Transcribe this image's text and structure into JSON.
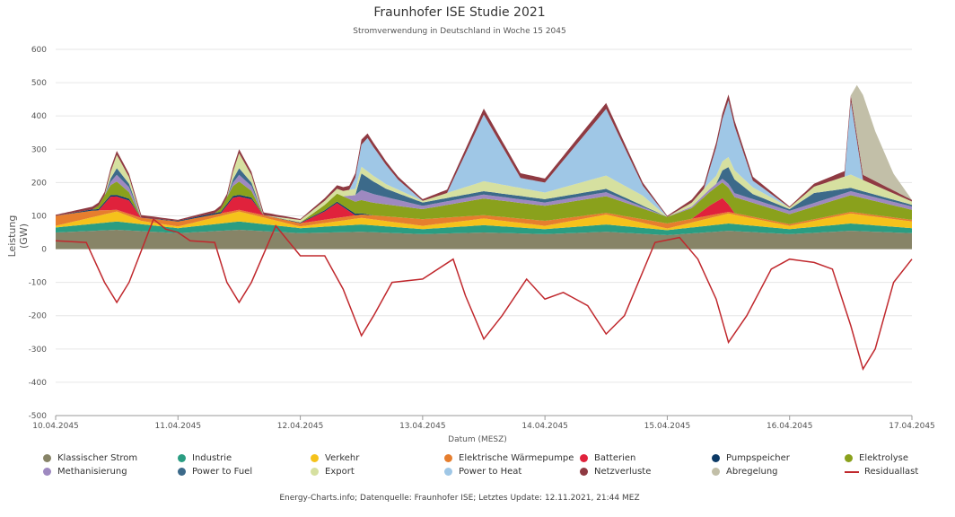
{
  "chart_data": {
    "type": "area",
    "title": "Fraunhofer ISE Studie 2021",
    "subtitle": "Stromverwendung in Deutschland in Woche 15 2045",
    "xlabel": "Datum (MESZ)",
    "ylabel": "Leistung (GW)",
    "ylim": [
      -500,
      600
    ],
    "yticks": [
      -500,
      -400,
      -300,
      -200,
      -100,
      0,
      100,
      200,
      300,
      400,
      500,
      600
    ],
    "xlim": [
      0,
      7
    ],
    "xticks": [
      {
        "x": 0,
        "label": "10.04.2045"
      },
      {
        "x": 1,
        "label": "11.04.2045"
      },
      {
        "x": 2,
        "label": "12.04.2045"
      },
      {
        "x": 3,
        "label": "13.04.2045"
      },
      {
        "x": 4,
        "label": "14.04.2045"
      },
      {
        "x": 5,
        "label": "15.04.2045"
      },
      {
        "x": 6,
        "label": "16.04.2045"
      },
      {
        "x": 7,
        "label": "17.04.2045"
      }
    ],
    "grid": true,
    "legend_position": "bottom",
    "stacked_series": [
      {
        "name": "Klassischer Strom",
        "color": "#878467",
        "points": [
          [
            0,
            50
          ],
          [
            0.5,
            58
          ],
          [
            1,
            48
          ],
          [
            1.5,
            58
          ],
          [
            2,
            48
          ],
          [
            2.5,
            52
          ],
          [
            3,
            45
          ],
          [
            3.5,
            50
          ],
          [
            4,
            45
          ],
          [
            4.5,
            52
          ],
          [
            5,
            42
          ],
          [
            5.5,
            55
          ],
          [
            6,
            45
          ],
          [
            6.5,
            55
          ],
          [
            7,
            48
          ]
        ]
      },
      {
        "name": "Industrie",
        "color": "#2a9d82",
        "points": [
          [
            0,
            15
          ],
          [
            0.5,
            25
          ],
          [
            1,
            15
          ],
          [
            1.5,
            25
          ],
          [
            2,
            15
          ],
          [
            2.5,
            22
          ],
          [
            3,
            15
          ],
          [
            3.5,
            22
          ],
          [
            4,
            15
          ],
          [
            4.5,
            22
          ],
          [
            5,
            15
          ],
          [
            5.5,
            22
          ],
          [
            6,
            15
          ],
          [
            6.5,
            22
          ],
          [
            7,
            15
          ]
        ]
      },
      {
        "name": "Verkehr",
        "color": "#f5c21b",
        "points": [
          [
            0,
            5
          ],
          [
            0.5,
            30
          ],
          [
            0.7,
            10
          ],
          [
            1,
            5
          ],
          [
            1.5,
            30
          ],
          [
            2,
            5
          ],
          [
            2.5,
            20
          ],
          [
            3,
            10
          ],
          [
            3.5,
            20
          ],
          [
            4,
            10
          ],
          [
            4.5,
            30
          ],
          [
            5,
            5
          ],
          [
            5.5,
            30
          ],
          [
            6,
            10
          ],
          [
            6.5,
            30
          ],
          [
            7,
            20
          ]
        ]
      },
      {
        "name": "Elektrische Wärmepumpe",
        "color": "#e67e2e",
        "points": [
          [
            0,
            30
          ],
          [
            0.3,
            20
          ],
          [
            0.5,
            5
          ],
          [
            1,
            15
          ],
          [
            1.5,
            5
          ],
          [
            2,
            10
          ],
          [
            2.5,
            10
          ],
          [
            3,
            20
          ],
          [
            3.5,
            10
          ],
          [
            4,
            15
          ],
          [
            4.5,
            5
          ],
          [
            5,
            15
          ],
          [
            5.5,
            5
          ],
          [
            6,
            5
          ],
          [
            6.5,
            5
          ],
          [
            7,
            5
          ]
        ]
      },
      {
        "name": "Batterien",
        "color": "#e0223c",
        "points": [
          [
            0,
            0
          ],
          [
            0.35,
            0
          ],
          [
            0.45,
            40
          ],
          [
            0.6,
            40
          ],
          [
            0.7,
            0
          ],
          [
            1.35,
            0
          ],
          [
            1.45,
            40
          ],
          [
            1.6,
            40
          ],
          [
            1.7,
            0
          ],
          [
            2,
            0
          ],
          [
            2.2,
            25
          ],
          [
            2.3,
            45
          ],
          [
            2.45,
            0
          ],
          [
            5.2,
            0
          ],
          [
            5.35,
            30
          ],
          [
            5.45,
            45
          ],
          [
            5.55,
            0
          ],
          [
            7,
            0
          ]
        ]
      },
      {
        "name": "Pumpspeicher",
        "color": "#0c3a66",
        "points": [
          [
            0,
            0
          ],
          [
            0.45,
            5
          ],
          [
            0.6,
            5
          ],
          [
            0.7,
            0
          ],
          [
            1.45,
            5
          ],
          [
            1.6,
            5
          ],
          [
            1.7,
            0
          ],
          [
            2.45,
            5
          ],
          [
            2.6,
            0
          ],
          [
            7,
            0
          ]
        ]
      },
      {
        "name": "Elektrolyse",
        "color": "#8aa11c",
        "points": [
          [
            0,
            0
          ],
          [
            0.3,
            0
          ],
          [
            0.5,
            40
          ],
          [
            0.7,
            0
          ],
          [
            1.3,
            0
          ],
          [
            1.5,
            40
          ],
          [
            1.7,
            0
          ],
          [
            2,
            0
          ],
          [
            2.5,
            40
          ],
          [
            3,
            30
          ],
          [
            3.5,
            50
          ],
          [
            4,
            45
          ],
          [
            4.5,
            50
          ],
          [
            5,
            20
          ],
          [
            5.5,
            50
          ],
          [
            6,
            30
          ],
          [
            6.5,
            50
          ],
          [
            7,
            30
          ]
        ]
      },
      {
        "name": "Methanisierung",
        "color": "#9e89c0",
        "points": [
          [
            0,
            0
          ],
          [
            0.4,
            0
          ],
          [
            0.5,
            20
          ],
          [
            0.6,
            15
          ],
          [
            0.7,
            0
          ],
          [
            1.4,
            0
          ],
          [
            1.5,
            20
          ],
          [
            1.6,
            15
          ],
          [
            1.7,
            0
          ],
          [
            2.35,
            0
          ],
          [
            2.5,
            30
          ],
          [
            3,
            10
          ],
          [
            3.5,
            12
          ],
          [
            4,
            10
          ],
          [
            4.5,
            12
          ],
          [
            5,
            0
          ],
          [
            5.5,
            12
          ],
          [
            6,
            10
          ],
          [
            6.5,
            12
          ],
          [
            7,
            10
          ]
        ]
      },
      {
        "name": "Power to Fuel",
        "color": "#3c6a8a",
        "points": [
          [
            0,
            0
          ],
          [
            0.4,
            0
          ],
          [
            0.5,
            20
          ],
          [
            0.6,
            10
          ],
          [
            0.7,
            0
          ],
          [
            1.4,
            0
          ],
          [
            1.5,
            20
          ],
          [
            1.6,
            10
          ],
          [
            1.7,
            0
          ],
          [
            2.45,
            0
          ],
          [
            2.5,
            50
          ],
          [
            2.7,
            25
          ],
          [
            3,
            10
          ],
          [
            3.5,
            10
          ],
          [
            4,
            10
          ],
          [
            4.5,
            10
          ],
          [
            5,
            0
          ],
          [
            5.4,
            0
          ],
          [
            5.5,
            50
          ],
          [
            5.7,
            15
          ],
          [
            6,
            5
          ],
          [
            6.2,
            30
          ],
          [
            6.5,
            10
          ],
          [
            7,
            5
          ]
        ]
      },
      {
        "name": "Export",
        "color": "#d6e0a0",
        "points": [
          [
            0,
            0
          ],
          [
            0.4,
            0
          ],
          [
            0.5,
            40
          ],
          [
            0.7,
            0
          ],
          [
            1.4,
            0
          ],
          [
            1.5,
            45
          ],
          [
            1.7,
            0
          ],
          [
            2.5,
            20
          ],
          [
            3,
            5
          ],
          [
            3.5,
            30
          ],
          [
            4,
            20
          ],
          [
            4.5,
            40
          ],
          [
            4.8,
            30
          ],
          [
            5,
            0
          ],
          [
            5.5,
            30
          ],
          [
            6,
            5
          ],
          [
            6.5,
            40
          ],
          [
            7,
            10
          ]
        ]
      },
      {
        "name": "Power to Heat",
        "color": "#9fc7e6",
        "points": [
          [
            0,
            0
          ],
          [
            2.4,
            0
          ],
          [
            2.55,
            100
          ],
          [
            2.8,
            30
          ],
          [
            3,
            0
          ],
          [
            3.2,
            0
          ],
          [
            3.5,
            200
          ],
          [
            3.8,
            30
          ],
          [
            4,
            30
          ],
          [
            4.5,
            200
          ],
          [
            4.8,
            30
          ],
          [
            5,
            0
          ],
          [
            5.3,
            0
          ],
          [
            5.5,
            170
          ],
          [
            5.7,
            20
          ],
          [
            6,
            0
          ],
          [
            6.45,
            0
          ],
          [
            6.5,
            220
          ],
          [
            6.6,
            0
          ],
          [
            7,
            0
          ]
        ]
      },
      {
        "name": "Netzverluste",
        "color": "#8f3a42",
        "points": [
          [
            0,
            3
          ],
          [
            0.5,
            12
          ],
          [
            1,
            3
          ],
          [
            1.5,
            12
          ],
          [
            2,
            3
          ],
          [
            2.5,
            15
          ],
          [
            3,
            5
          ],
          [
            3.5,
            18
          ],
          [
            4,
            12
          ],
          [
            4.5,
            18
          ],
          [
            5,
            3
          ],
          [
            5.5,
            18
          ],
          [
            6,
            3
          ],
          [
            6.5,
            18
          ],
          [
            7,
            5
          ]
        ]
      },
      {
        "name": "Abregelung",
        "color": "#c2bfa8",
        "points": [
          [
            0,
            0
          ],
          [
            6.5,
            0
          ],
          [
            6.55,
            150
          ],
          [
            6.6,
            240
          ],
          [
            6.7,
            150
          ],
          [
            6.85,
            50
          ],
          [
            7,
            0
          ]
        ]
      }
    ],
    "line_series": [
      {
        "name": "Residuallast",
        "color": "#c0282d",
        "points": [
          [
            0,
            25
          ],
          [
            0.25,
            20
          ],
          [
            0.4,
            -100
          ],
          [
            0.5,
            -160
          ],
          [
            0.6,
            -100
          ],
          [
            0.8,
            90
          ],
          [
            0.9,
            60
          ],
          [
            1,
            50
          ],
          [
            1.1,
            25
          ],
          [
            1.3,
            20
          ],
          [
            1.4,
            -100
          ],
          [
            1.5,
            -160
          ],
          [
            1.6,
            -100
          ],
          [
            1.8,
            70
          ],
          [
            2,
            -20
          ],
          [
            2.2,
            -20
          ],
          [
            2.35,
            -120
          ],
          [
            2.5,
            -260
          ],
          [
            2.6,
            -200
          ],
          [
            2.75,
            -100
          ],
          [
            3,
            -90
          ],
          [
            3.25,
            -30
          ],
          [
            3.35,
            -140
          ],
          [
            3.5,
            -270
          ],
          [
            3.65,
            -200
          ],
          [
            3.85,
            -90
          ],
          [
            4,
            -150
          ],
          [
            4.15,
            -130
          ],
          [
            4.35,
            -170
          ],
          [
            4.5,
            -255
          ],
          [
            4.65,
            -200
          ],
          [
            4.9,
            20
          ],
          [
            5.1,
            35
          ],
          [
            5.25,
            -30
          ],
          [
            5.4,
            -150
          ],
          [
            5.5,
            -280
          ],
          [
            5.65,
            -200
          ],
          [
            5.85,
            -60
          ],
          [
            6,
            -30
          ],
          [
            6.2,
            -40
          ],
          [
            6.35,
            -60
          ],
          [
            6.5,
            -230
          ],
          [
            6.6,
            -360
          ],
          [
            6.7,
            -300
          ],
          [
            6.85,
            -100
          ],
          [
            7,
            -30
          ]
        ]
      }
    ]
  },
  "credits": "Energy-Charts.info; Datenquelle: Fraunhofer ISE; Letztes Update: 12.11.2021, 21:44 MEZ"
}
